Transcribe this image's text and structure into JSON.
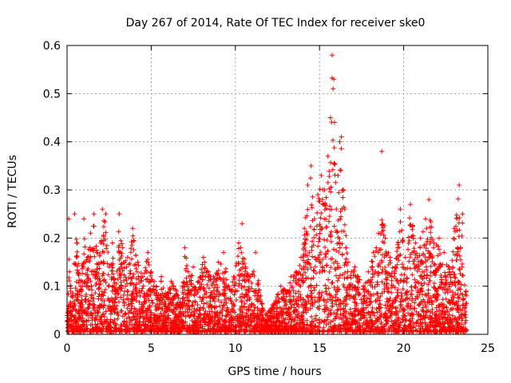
{
  "chart_data": {
    "type": "scatter",
    "title": "Day 267 of 2014, Rate Of TEC Index for receiver ske0",
    "xlabel": "GPS time / hours",
    "ylabel": "ROTI / TECUs",
    "xlim": [
      0,
      25
    ],
    "ylim": [
      0,
      0.6
    ],
    "x_ticks": [
      0,
      5,
      10,
      15,
      20,
      25
    ],
    "y_ticks": [
      0,
      0.1,
      0.2,
      0.3,
      0.4,
      0.5,
      0.6
    ],
    "x_tick_labels": [
      "0",
      "5",
      "10",
      "15",
      "20",
      "25"
    ],
    "y_tick_labels": [
      "0",
      "0.1",
      "0.2",
      "0.3",
      "0.4",
      "0.5",
      "0.6"
    ],
    "grid": true,
    "marker": "plus",
    "color": "#ff0000",
    "x_data_range": [
      0,
      23.75
    ],
    "points": [
      [
        0.05,
        0.02
      ],
      [
        0.1,
        0.24
      ],
      [
        0.15,
        0.13
      ],
      [
        0.3,
        0.08
      ],
      [
        0.45,
        0.25
      ],
      [
        0.6,
        0.19
      ],
      [
        0.8,
        0.1
      ],
      [
        1.0,
        0.24
      ],
      [
        1.1,
        0.15
      ],
      [
        1.4,
        0.21
      ],
      [
        1.6,
        0.25
      ],
      [
        1.8,
        0.17
      ],
      [
        2.0,
        0.19
      ],
      [
        2.1,
        0.26
      ],
      [
        2.3,
        0.25
      ],
      [
        2.5,
        0.14
      ],
      [
        2.7,
        0.19
      ],
      [
        2.9,
        0.09
      ],
      [
        3.1,
        0.25
      ],
      [
        3.3,
        0.18
      ],
      [
        3.6,
        0.16
      ],
      [
        3.9,
        0.22
      ],
      [
        4.2,
        0.15
      ],
      [
        4.5,
        0.12
      ],
      [
        4.8,
        0.17
      ],
      [
        5.0,
        0.13
      ],
      [
        5.3,
        0.1
      ],
      [
        5.6,
        0.12
      ],
      [
        5.9,
        0.08
      ],
      [
        6.2,
        0.11
      ],
      [
        6.5,
        0.09
      ],
      [
        6.8,
        0.06
      ],
      [
        7.0,
        0.18
      ],
      [
        7.2,
        0.13
      ],
      [
        7.5,
        0.14
      ],
      [
        7.8,
        0.11
      ],
      [
        8.1,
        0.16
      ],
      [
        8.4,
        0.13
      ],
      [
        8.7,
        0.12
      ],
      [
        9.0,
        0.15
      ],
      [
        9.3,
        0.17
      ],
      [
        9.6,
        0.1
      ],
      [
        9.9,
        0.12
      ],
      [
        10.2,
        0.19
      ],
      [
        10.4,
        0.23
      ],
      [
        10.6,
        0.14
      ],
      [
        10.9,
        0.12
      ],
      [
        11.2,
        0.17
      ],
      [
        11.5,
        0.08
      ],
      [
        11.8,
        0.04
      ],
      [
        12.1,
        0.05
      ],
      [
        12.4,
        0.07
      ],
      [
        12.7,
        0.1
      ],
      [
        13.0,
        0.09
      ],
      [
        13.3,
        0.12
      ],
      [
        13.6,
        0.13
      ],
      [
        13.9,
        0.16
      ],
      [
        14.1,
        0.22
      ],
      [
        14.3,
        0.31
      ],
      [
        14.5,
        0.35
      ],
      [
        14.7,
        0.24
      ],
      [
        14.9,
        0.29
      ],
      [
        15.1,
        0.33
      ],
      [
        15.3,
        0.3
      ],
      [
        15.5,
        0.37
      ],
      [
        15.65,
        0.45
      ],
      [
        15.75,
        0.58
      ],
      [
        15.85,
        0.53
      ],
      [
        16.0,
        0.26
      ],
      [
        16.1,
        0.33
      ],
      [
        16.2,
        0.4
      ],
      [
        16.3,
        0.41
      ],
      [
        16.5,
        0.26
      ],
      [
        16.7,
        0.15
      ],
      [
        16.9,
        0.13
      ],
      [
        17.1,
        0.14
      ],
      [
        17.3,
        0.12
      ],
      [
        17.6,
        0.1
      ],
      [
        17.9,
        0.13
      ],
      [
        18.2,
        0.17
      ],
      [
        18.5,
        0.21
      ],
      [
        18.7,
        0.38
      ],
      [
        18.9,
        0.2
      ],
      [
        19.2,
        0.16
      ],
      [
        19.5,
        0.14
      ],
      [
        19.8,
        0.26
      ],
      [
        20.1,
        0.16
      ],
      [
        20.4,
        0.27
      ],
      [
        20.7,
        0.19
      ],
      [
        21.0,
        0.2
      ],
      [
        21.3,
        0.24
      ],
      [
        21.5,
        0.28
      ],
      [
        21.8,
        0.19
      ],
      [
        22.1,
        0.2
      ],
      [
        22.4,
        0.17
      ],
      [
        22.7,
        0.14
      ],
      [
        23.0,
        0.22
      ],
      [
        23.3,
        0.31
      ],
      [
        23.5,
        0.25
      ],
      [
        23.7,
        0.09
      ]
    ]
  }
}
